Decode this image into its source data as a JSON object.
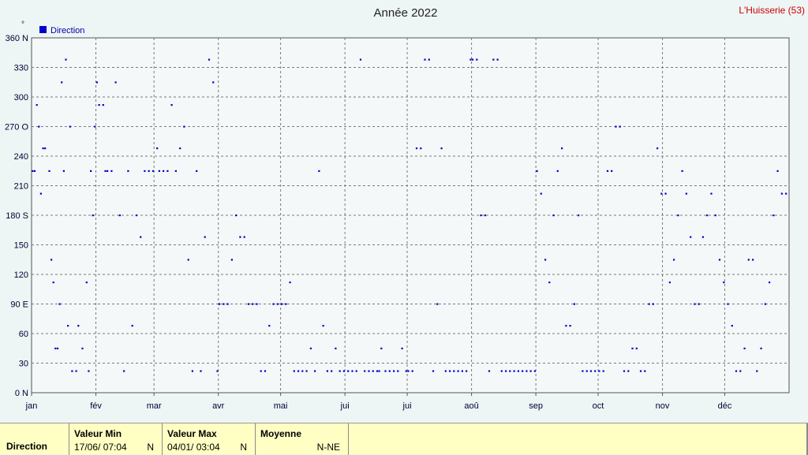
{
  "title": "Année 2022",
  "station": "L'Huisserie (53)",
  "y_unit": "°",
  "colors": {
    "series": "#0000cc",
    "grid": "#7a7a7a",
    "plot_bg": "#f4f8f8",
    "panel_bg": "#ffffc4"
  },
  "chart_data": {
    "type": "scatter",
    "title": "Année 2022",
    "ylim": [
      0,
      360
    ],
    "xlim": [
      "2022-01-01",
      "2022-12-31"
    ],
    "y_ticks": [
      "0 N",
      "30",
      "60",
      "90 E",
      "120",
      "150",
      "180 S",
      "210",
      "240",
      "270 O",
      "300",
      "330",
      "360 N"
    ],
    "x_ticks": [
      "jan",
      "fév",
      "mar",
      "avr",
      "mai",
      "jui",
      "jui",
      "aoû",
      "sep",
      "oct",
      "nov",
      "déc"
    ],
    "grid": true,
    "legend": "top-left",
    "series": [
      {
        "name": "Direction",
        "x": [
          "2022-01-01",
          "2022-01-02",
          "2022-01-03",
          "2022-01-04",
          "2022-01-05",
          "2022-01-06",
          "2022-01-07",
          "2022-01-09",
          "2022-01-10",
          "2022-01-11",
          "2022-01-12",
          "2022-01-13",
          "2022-01-14",
          "2022-01-15",
          "2022-01-16",
          "2022-01-17",
          "2022-01-18",
          "2022-01-19",
          "2022-01-20",
          "2022-01-22",
          "2022-01-23",
          "2022-01-25",
          "2022-01-27",
          "2022-01-28",
          "2022-01-29",
          "2022-01-30",
          "2022-01-31",
          "2022-02-01",
          "2022-02-02",
          "2022-02-04",
          "2022-02-05",
          "2022-02-06",
          "2022-02-08",
          "2022-02-10",
          "2022-02-12",
          "2022-02-14",
          "2022-02-16",
          "2022-02-18",
          "2022-02-20",
          "2022-02-22",
          "2022-02-24",
          "2022-02-26",
          "2022-02-28",
          "2022-03-02",
          "2022-03-03",
          "2022-03-05",
          "2022-03-07",
          "2022-03-09",
          "2022-03-11",
          "2022-03-13",
          "2022-03-15",
          "2022-03-17",
          "2022-03-19",
          "2022-03-21",
          "2022-03-23",
          "2022-03-25",
          "2022-03-27",
          "2022-03-29",
          "2022-03-31",
          "2022-04-01",
          "2022-04-03",
          "2022-04-05",
          "2022-04-07",
          "2022-04-09",
          "2022-04-11",
          "2022-04-13",
          "2022-04-15",
          "2022-04-17",
          "2022-04-19",
          "2022-04-21",
          "2022-04-23",
          "2022-04-25",
          "2022-04-27",
          "2022-04-29",
          "2022-05-01",
          "2022-05-03",
          "2022-05-05",
          "2022-05-07",
          "2022-05-09",
          "2022-05-11",
          "2022-05-13",
          "2022-05-15",
          "2022-05-17",
          "2022-05-19",
          "2022-05-21",
          "2022-05-23",
          "2022-05-25",
          "2022-05-27",
          "2022-05-29",
          "2022-05-31",
          "2022-06-02",
          "2022-06-04",
          "2022-06-06",
          "2022-06-08",
          "2022-06-10",
          "2022-06-12",
          "2022-06-14",
          "2022-06-16",
          "2022-06-17",
          "2022-06-18",
          "2022-06-20",
          "2022-06-22",
          "2022-06-24",
          "2022-06-26",
          "2022-06-28",
          "2022-06-30",
          "2022-07-01",
          "2022-07-03",
          "2022-07-05",
          "2022-07-07",
          "2022-07-09",
          "2022-07-11",
          "2022-07-13",
          "2022-07-15",
          "2022-07-17",
          "2022-07-19",
          "2022-07-21",
          "2022-07-23",
          "2022-07-25",
          "2022-07-27",
          "2022-07-29",
          "2022-07-31",
          "2022-08-01",
          "2022-08-03",
          "2022-08-05",
          "2022-08-07",
          "2022-08-09",
          "2022-08-11",
          "2022-08-13",
          "2022-08-15",
          "2022-08-17",
          "2022-08-19",
          "2022-08-21",
          "2022-08-23",
          "2022-08-25",
          "2022-08-27",
          "2022-08-29",
          "2022-08-31",
          "2022-09-01",
          "2022-09-03",
          "2022-09-05",
          "2022-09-07",
          "2022-09-09",
          "2022-09-11",
          "2022-09-13",
          "2022-09-15",
          "2022-09-17",
          "2022-09-19",
          "2022-09-21",
          "2022-09-23",
          "2022-09-25",
          "2022-09-27",
          "2022-09-29",
          "2022-10-01",
          "2022-10-03",
          "2022-10-05",
          "2022-10-07",
          "2022-10-09",
          "2022-10-11",
          "2022-10-13",
          "2022-10-15",
          "2022-10-17",
          "2022-10-19",
          "2022-10-21",
          "2022-10-23",
          "2022-10-25",
          "2022-10-27",
          "2022-10-29",
          "2022-10-31",
          "2022-11-02",
          "2022-11-04",
          "2022-11-06",
          "2022-11-08",
          "2022-11-10",
          "2022-11-12",
          "2022-11-14",
          "2022-11-16",
          "2022-11-18",
          "2022-11-20",
          "2022-11-22",
          "2022-11-24",
          "2022-11-26",
          "2022-11-28",
          "2022-11-30",
          "2022-12-02",
          "2022-12-04",
          "2022-12-06",
          "2022-12-08",
          "2022-12-10",
          "2022-12-12",
          "2022-12-14",
          "2022-12-16",
          "2022-12-18",
          "2022-12-20",
          "2022-12-22",
          "2022-12-24",
          "2022-12-26",
          "2022-12-28",
          "2022-12-30"
        ],
        "y": [
          225,
          225,
          292,
          270,
          202,
          248,
          248,
          225,
          135,
          112,
          45,
          45,
          90,
          315,
          225,
          338,
          68,
          270,
          22,
          22,
          68,
          45,
          112,
          22,
          225,
          180,
          270,
          315,
          292,
          292,
          225,
          225,
          225,
          315,
          180,
          22,
          225,
          68,
          180,
          158,
          225,
          225,
          225,
          248,
          225,
          225,
          225,
          292,
          225,
          248,
          270,
          135,
          22,
          225,
          22,
          158,
          338,
          315,
          22,
          90,
          90,
          90,
          135,
          180,
          158,
          158,
          90,
          90,
          90,
          22,
          22,
          68,
          90,
          90,
          90,
          90,
          112,
          22,
          22,
          22,
          22,
          45,
          22,
          225,
          68,
          22,
          22,
          45,
          22,
          22,
          22,
          22,
          22,
          338,
          22,
          22,
          22,
          22,
          22,
          45,
          22,
          22,
          22,
          22,
          45,
          22,
          22,
          22,
          248,
          248,
          338,
          338,
          22,
          90,
          248,
          22,
          22,
          22,
          22,
          22,
          22,
          338,
          338,
          338,
          180,
          180,
          22,
          338,
          338,
          22,
          22,
          22,
          22,
          22,
          22,
          22,
          22,
          22,
          225,
          202,
          135,
          112,
          180,
          225,
          248,
          68,
          68,
          90,
          180,
          22,
          22,
          22,
          22,
          22,
          22,
          225,
          225,
          270,
          270,
          22,
          22,
          45,
          45,
          22,
          22,
          90,
          90,
          248,
          202,
          202,
          112,
          135,
          180,
          225,
          202,
          158,
          90,
          90,
          158,
          180,
          202,
          180,
          135,
          112,
          90,
          68,
          22,
          22,
          45,
          135,
          135,
          22,
          45,
          90,
          112,
          180,
          225,
          202,
          202
        ]
      }
    ]
  },
  "stats": {
    "row_label": "Direction",
    "min": {
      "header": "Valeur Min",
      "value": "17/06/  07:04",
      "dir": "N"
    },
    "max": {
      "header": "Valeur Max",
      "value": "04/01/  03:04",
      "dir": "N"
    },
    "avg": {
      "header": "Moyenne",
      "dir": "N-NE"
    }
  }
}
